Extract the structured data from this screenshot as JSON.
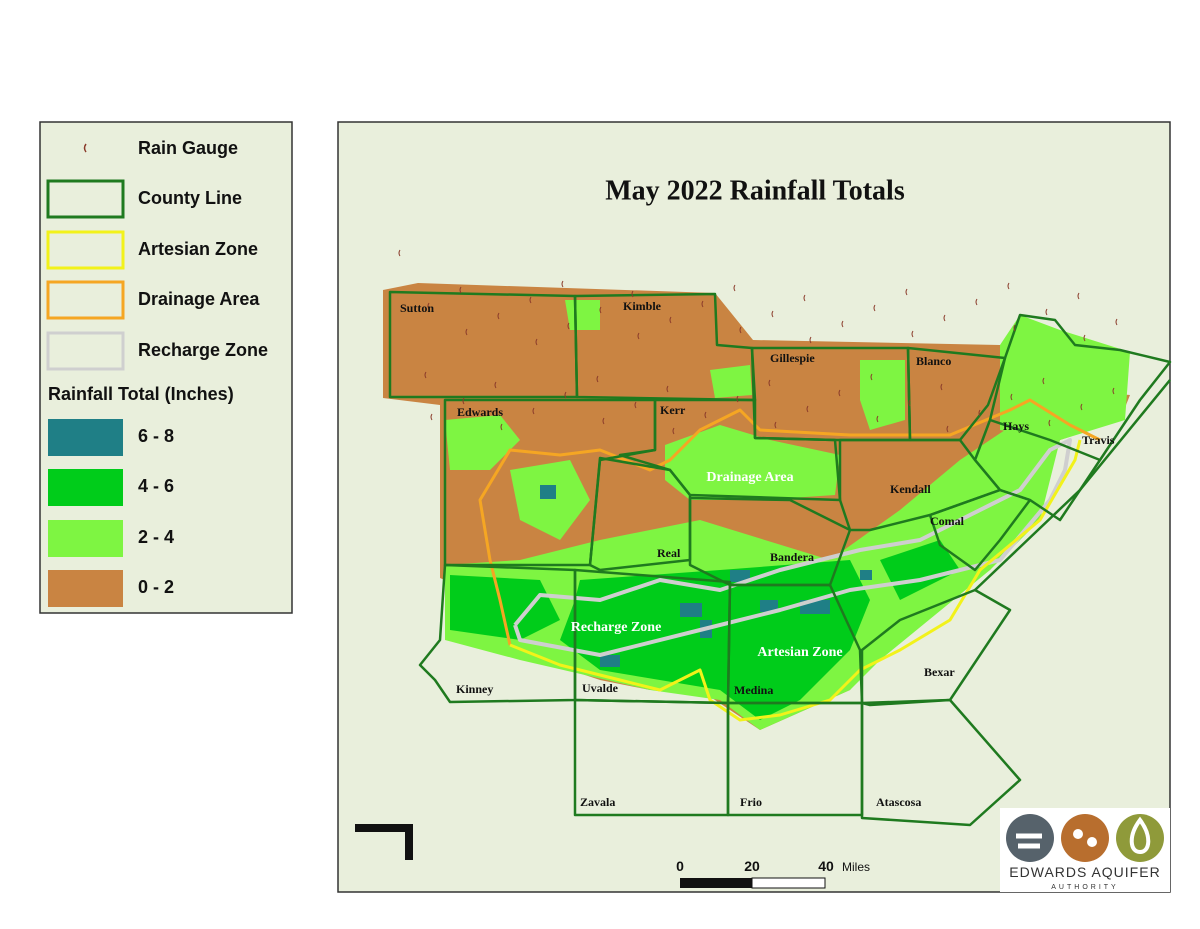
{
  "legend": {
    "items": [
      {
        "label": "Rain Gauge",
        "color": "#8a3a2a"
      },
      {
        "label": "County Line",
        "color": "#1f7a1f"
      },
      {
        "label": "Artesian Zone",
        "color": "#f2f21a"
      },
      {
        "label": "Drainage Area",
        "color": "#f5a623"
      },
      {
        "label": "Recharge Zone",
        "color": "#cfcfcf"
      }
    ],
    "rainfall_title": "Rainfall Total (Inches)",
    "classes": [
      {
        "label": "6 - 8",
        "color": "#1f7f86"
      },
      {
        "label": "4 - 6",
        "color": "#00cc1a"
      },
      {
        "label": "2 - 4",
        "color": "#7ef542"
      },
      {
        "label": "0 - 2",
        "color": "#c98442"
      }
    ]
  },
  "map": {
    "title": "May 2022 Rainfall Totals",
    "counties": [
      "Sutton",
      "Kimble",
      "Gillespie",
      "Blanco",
      "Edwards",
      "Kerr",
      "Hays",
      "Travis",
      "Kendall",
      "Comal",
      "Real",
      "Bandera",
      "Kinney",
      "Uvalde",
      "Medina",
      "Bexar",
      "Zavala",
      "Frio",
      "Atascosa"
    ],
    "zones": [
      "Drainage Area",
      "Recharge Zone",
      "Artesian Zone"
    ],
    "scale": {
      "ticks": [
        0,
        20,
        40
      ],
      "unit": "Miles"
    }
  },
  "logo": {
    "name": "EDWARDS AQUIFER",
    "subtitle": "AUTHORITY"
  }
}
